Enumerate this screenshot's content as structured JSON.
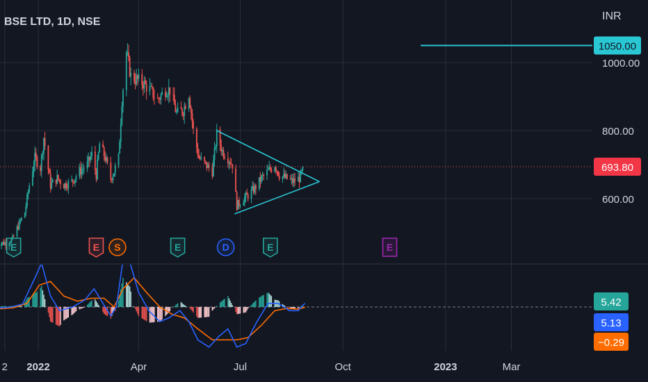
{
  "header": {
    "symbol": "BSE LTD, 1D, NSE",
    "currency": "INR"
  },
  "colors": {
    "background": "#131722",
    "grid": "#2a2e39",
    "text": "#d1d4dc",
    "up": "#26a69a",
    "down": "#ef5350",
    "pattern": "#28c7d3",
    "macd": "#2962ff",
    "signal": "#ff6d00",
    "price_tag": "#f23645",
    "purple": "#9c27b0"
  },
  "chart_data": [
    {
      "type": "candlestick",
      "title": "BSE LTD, 1D, NSE",
      "ylabel": "INR",
      "ylim": [
        430,
        1065
      ],
      "y_ticks": [
        "1000.00",
        "800.00",
        "600.00"
      ],
      "x_ticks": [
        "2",
        "2022",
        "Apr",
        "Jul",
        "Oct",
        "2023",
        "Mar"
      ],
      "last_price": "693.80",
      "horizontal_level": {
        "value": 1050,
        "label": "1050.00"
      },
      "price_path": [
        [
          "2021-11-24",
          470
        ],
        [
          "2021-12-02",
          470
        ],
        [
          "2021-12-09",
          480
        ],
        [
          "2021-12-14",
          520
        ],
        [
          "2021-12-20",
          560
        ],
        [
          "2021-12-24",
          640
        ],
        [
          "2021-12-29",
          720
        ],
        [
          "2022-01-03",
          690
        ],
        [
          "2022-01-06",
          780
        ],
        [
          "2022-01-12",
          640
        ],
        [
          "2022-01-18",
          660
        ],
        [
          "2022-01-24",
          640
        ],
        [
          "2022-01-31",
          650
        ],
        [
          "2022-02-07",
          680
        ],
        [
          "2022-02-14",
          700
        ],
        [
          "2022-02-18",
          730
        ],
        [
          "2022-02-22",
          670
        ],
        [
          "2022-02-25",
          760
        ],
        [
          "2022-03-02",
          720
        ],
        [
          "2022-03-07",
          660
        ],
        [
          "2022-03-10",
          680
        ],
        [
          "2022-03-14",
          720
        ],
        [
          "2022-03-17",
          890
        ],
        [
          "2022-03-21",
          1030
        ],
        [
          "2022-03-25",
          960
        ],
        [
          "2022-03-30",
          950
        ],
        [
          "2022-04-05",
          940
        ],
        [
          "2022-04-11",
          920
        ],
        [
          "2022-04-18",
          890
        ],
        [
          "2022-04-25",
          920
        ],
        [
          "2022-04-29",
          920
        ],
        [
          "2022-05-05",
          850
        ],
        [
          "2022-05-11",
          860
        ],
        [
          "2022-05-16",
          910
        ],
        [
          "2022-05-20",
          800
        ],
        [
          "2022-05-25",
          720
        ],
        [
          "2022-05-31",
          700
        ],
        [
          "2022-06-06",
          680
        ],
        [
          "2022-06-10",
          790
        ],
        [
          "2022-06-15",
          740
        ],
        [
          "2022-06-20",
          720
        ],
        [
          "2022-06-24",
          700
        ],
        [
          "2022-06-28",
          580
        ],
        [
          "2022-07-04",
          600
        ],
        [
          "2022-07-08",
          610
        ],
        [
          "2022-07-14",
          630
        ],
        [
          "2022-07-20",
          660
        ],
        [
          "2022-07-26",
          680
        ],
        [
          "2022-08-01",
          700
        ],
        [
          "2022-08-05",
          670
        ],
        [
          "2022-08-11",
          660
        ],
        [
          "2022-08-17",
          650
        ],
        [
          "2022-08-23",
          660
        ],
        [
          "2022-08-28",
          693.8
        ]
      ],
      "triangle": {
        "upper": [
          [
            "2022-06-10",
            800
          ],
          [
            "2022-09-10",
            650
          ]
        ],
        "lower": [
          [
            "2022-06-26",
            555
          ],
          [
            "2022-09-10",
            650
          ]
        ]
      },
      "event_markers": [
        {
          "date": "2021-12-10",
          "letter": "E",
          "kind": "earnings-positive"
        },
        {
          "date": "2022-02-22",
          "letter": "E",
          "kind": "earnings-negative"
        },
        {
          "date": "2022-03-13",
          "letter": "S",
          "kind": "split"
        },
        {
          "date": "2022-05-06",
          "letter": "E",
          "kind": "earnings-positive"
        },
        {
          "date": "2022-06-18",
          "letter": "D",
          "kind": "dividend"
        },
        {
          "date": "2022-07-28",
          "letter": "E",
          "kind": "earnings-positive"
        },
        {
          "date": "2022-11-12",
          "letter": "E",
          "kind": "earnings-upcoming"
        }
      ]
    },
    {
      "type": "line",
      "title": "",
      "values_label": [
        "5.42",
        "5.13",
        "−0.29"
      ],
      "series": [
        {
          "role": "histogram",
          "value": "5.42"
        },
        {
          "role": "macd",
          "value": "5.13"
        },
        {
          "role": "signal",
          "value": "−0.29"
        }
      ],
      "macd_path": [
        [
          "2021-11-24",
          -2
        ],
        [
          "2021-12-08",
          0
        ],
        [
          "2021-12-18",
          4
        ],
        [
          "2021-12-26",
          30
        ],
        [
          "2022-01-04",
          60
        ],
        [
          "2022-01-12",
          15
        ],
        [
          "2022-01-20",
          -5
        ],
        [
          "2022-02-01",
          0
        ],
        [
          "2022-02-12",
          10
        ],
        [
          "2022-02-20",
          25
        ],
        [
          "2022-02-28",
          5
        ],
        [
          "2022-03-07",
          -12
        ],
        [
          "2022-03-12",
          0
        ],
        [
          "2022-03-18",
          65
        ],
        [
          "2022-03-24",
          62
        ],
        [
          "2022-04-01",
          20
        ],
        [
          "2022-04-10",
          -5
        ],
        [
          "2022-04-20",
          -20
        ],
        [
          "2022-04-28",
          -15
        ],
        [
          "2022-05-08",
          -5
        ],
        [
          "2022-05-16",
          -20
        ],
        [
          "2022-05-24",
          -45
        ],
        [
          "2022-06-03",
          -55
        ],
        [
          "2022-06-12",
          -40
        ],
        [
          "2022-06-20",
          -30
        ],
        [
          "2022-06-28",
          -55
        ],
        [
          "2022-07-06",
          -50
        ],
        [
          "2022-07-16",
          -20
        ],
        [
          "2022-07-26",
          5
        ],
        [
          "2022-08-04",
          5
        ],
        [
          "2022-08-14",
          -5
        ],
        [
          "2022-08-22",
          -5
        ],
        [
          "2022-08-28",
          5.13
        ]
      ],
      "signal_path": [
        [
          "2021-11-24",
          -3
        ],
        [
          "2021-12-10",
          -1
        ],
        [
          "2021-12-22",
          5
        ],
        [
          "2022-01-02",
          30
        ],
        [
          "2022-01-12",
          35
        ],
        [
          "2022-01-24",
          15
        ],
        [
          "2022-02-05",
          8
        ],
        [
          "2022-02-18",
          12
        ],
        [
          "2022-03-01",
          12
        ],
        [
          "2022-03-10",
          0
        ],
        [
          "2022-03-18",
          25
        ],
        [
          "2022-03-28",
          40
        ],
        [
          "2022-04-08",
          20
        ],
        [
          "2022-04-20",
          0
        ],
        [
          "2022-05-01",
          -10
        ],
        [
          "2022-05-12",
          -15
        ],
        [
          "2022-05-24",
          -30
        ],
        [
          "2022-06-06",
          -45
        ],
        [
          "2022-06-16",
          -45
        ],
        [
          "2022-06-28",
          -45
        ],
        [
          "2022-07-08",
          -42
        ],
        [
          "2022-07-20",
          -25
        ],
        [
          "2022-08-01",
          -5
        ],
        [
          "2022-08-12",
          -2
        ],
        [
          "2022-08-22",
          -3
        ],
        [
          "2022-08-28",
          -0.29
        ]
      ],
      "zero_line": true
    }
  ]
}
